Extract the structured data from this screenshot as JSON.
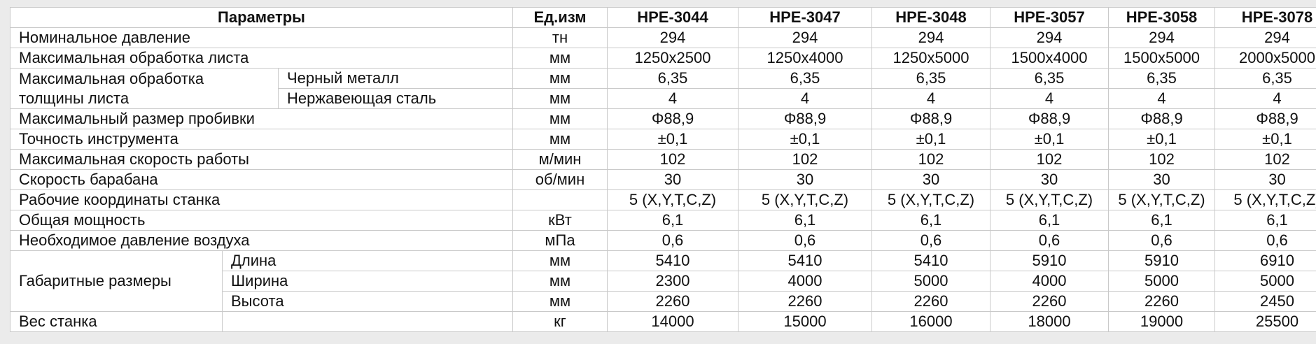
{
  "header": {
    "params": "Параметры",
    "unit": "Ед.изм",
    "models": [
      "HPE-3044",
      "HPE-3047",
      "HPE-3048",
      "HPE-3057",
      "HPE-3058",
      "HPE-3078"
    ]
  },
  "rows": {
    "pressure": {
      "label": "Номинальное давление",
      "unit": "тн",
      "values": [
        "294",
        "294",
        "294",
        "294",
        "294",
        "294"
      ]
    },
    "sheet": {
      "label": "Максимальная обработка листа",
      "unit": "мм",
      "values": [
        "1250x2500",
        "1250x4000",
        "1250x5000",
        "1500x4000",
        "1500x5000",
        "2000x5000"
      ]
    },
    "thickness": {
      "label_line1": "Максимальная обработка",
      "label_line2": "толщины листа",
      "ferrous": {
        "label": "Черный металл",
        "unit": "мм",
        "values": [
          "6,35",
          "6,35",
          "6,35",
          "6,35",
          "6,35",
          "6,35"
        ]
      },
      "stainless": {
        "label": "Нержавеющая сталь",
        "unit": "мм",
        "values": [
          "4",
          "4",
          "4",
          "4",
          "4",
          "4"
        ]
      }
    },
    "punch": {
      "label": "Максимальный размер пробивки",
      "unit": "мм",
      "values": [
        "Φ88,9",
        "Φ88,9",
        "Φ88,9",
        "Φ88,9",
        "Φ88,9",
        "Φ88,9"
      ]
    },
    "accuracy": {
      "label": "Точность инструмента",
      "unit": "мм",
      "values": [
        "±0,1",
        "±0,1",
        "±0,1",
        "±0,1",
        "±0,1",
        "±0,1"
      ]
    },
    "speed": {
      "label": "Максимальная скорость работы",
      "unit": "м/мин",
      "values": [
        "102",
        "102",
        "102",
        "102",
        "102",
        "102"
      ]
    },
    "drum": {
      "label": "Скорость барабана",
      "unit": "об/мин",
      "values": [
        "30",
        "30",
        "30",
        "30",
        "30",
        "30"
      ]
    },
    "axes": {
      "label": "Рабочие координаты станка",
      "unit": "",
      "values": [
        "5 (X,Y,T,C,Z)",
        "5 (X,Y,T,C,Z)",
        "5 (X,Y,T,C,Z)",
        "5 (X,Y,T,C,Z)",
        "5 (X,Y,T,C,Z)",
        "5 (X,Y,T,C,Z)"
      ]
    },
    "power": {
      "label": "Общая мощность",
      "unit": "кВт",
      "values": [
        "6,1",
        "6,1",
        "6,1",
        "6,1",
        "6,1",
        "6,1"
      ]
    },
    "air": {
      "label": "Необходимое давление воздуха",
      "unit": "мПа",
      "values": [
        "0,6",
        "0,6",
        "0,6",
        "0,6",
        "0,6",
        "0,6"
      ]
    },
    "dimensions": {
      "label": "Габаритные размеры",
      "length": {
        "label": "Длина",
        "unit": "мм",
        "values": [
          "5410",
          "5410",
          "5410",
          "5910",
          "5910",
          "6910"
        ]
      },
      "width": {
        "label": "Ширина",
        "unit": "мм",
        "values": [
          "2300",
          "4000",
          "5000",
          "4000",
          "5000",
          "5000"
        ]
      },
      "height": {
        "label": "Высота",
        "unit": "мм",
        "values": [
          "2260",
          "2260",
          "2260",
          "2260",
          "2260",
          "2450"
        ]
      }
    },
    "weight": {
      "label": "Вес станка",
      "unit": "кг",
      "values": [
        "14000",
        "15000",
        "16000",
        "18000",
        "19000",
        "25500"
      ]
    }
  }
}
